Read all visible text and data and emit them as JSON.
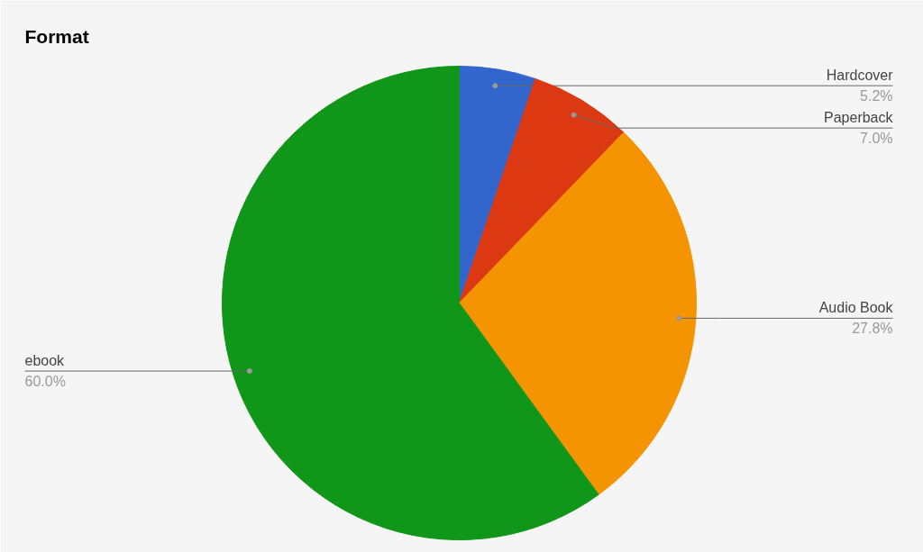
{
  "chart_data": {
    "type": "pie",
    "title": "Format",
    "categories": [
      "Hardcover",
      "Paperback",
      "Audio Book",
      "ebook"
    ],
    "values": [
      5.2,
      7.0,
      27.8,
      60.0
    ],
    "colors": [
      "#3366cc",
      "#dc3912",
      "#f49400",
      "#109618"
    ],
    "value_labels": [
      "5.2%",
      "7.0%",
      "27.8%",
      "60.0%"
    ]
  }
}
